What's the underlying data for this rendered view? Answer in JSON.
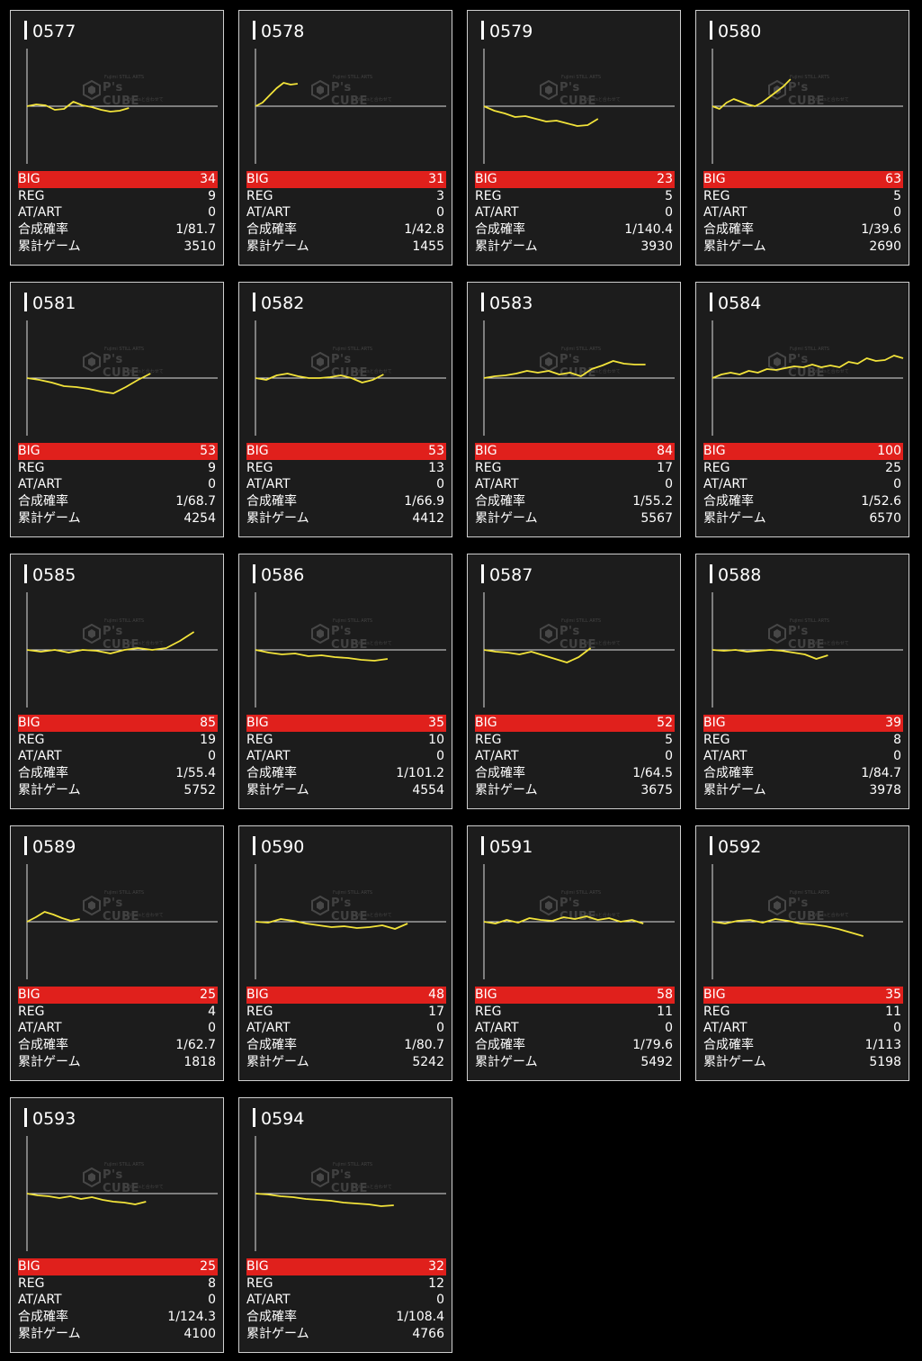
{
  "labels": {
    "big": "BIG",
    "reg": "REG",
    "atart": "AT/ART",
    "prob": "合成確率",
    "games": "累計ゲーム"
  },
  "watermark": {
    "brand": "P's CUBE",
    "line1": "Fujimi STILL ARTS",
    "line2": "slotartsと合わせて"
  },
  "colors": {
    "big_bar": "#e0201c",
    "line": "#f2e33a",
    "card_bg": "#1c1c1c"
  },
  "machines": [
    {
      "id": "0577",
      "big": "34",
      "reg": "9",
      "atart": "0",
      "prob": "1/81.7",
      "games": "3510",
      "series": [
        0,
        2,
        1,
        -4,
        -3,
        5,
        1,
        -1,
        -4,
        -6,
        -5,
        -2
      ]
    },
    {
      "id": "0578",
      "big": "31",
      "reg": "3",
      "atart": "0",
      "prob": "1/42.8",
      "games": "1455",
      "series": [
        0,
        4,
        12,
        20,
        26,
        24,
        25
      ]
    },
    {
      "id": "0579",
      "big": "23",
      "reg": "5",
      "atart": "0",
      "prob": "1/140.4",
      "games": "3930",
      "series": [
        0,
        -5,
        -8,
        -12,
        -11,
        -14,
        -17,
        -16,
        -19,
        -22,
        -21,
        -14
      ]
    },
    {
      "id": "0580",
      "big": "63",
      "reg": "5",
      "atart": "0",
      "prob": "1/39.6",
      "games": "2690",
      "series": [
        0,
        -3,
        4,
        8,
        5,
        2,
        0,
        4,
        10,
        16,
        22,
        30
      ]
    },
    {
      "id": "0581",
      "big": "53",
      "reg": "9",
      "atart": "0",
      "prob": "1/68.7",
      "games": "4254",
      "series": [
        0,
        -2,
        -5,
        -9,
        -10,
        -12,
        -15,
        -17,
        -10,
        -2,
        5
      ]
    },
    {
      "id": "0582",
      "big": "53",
      "reg": "13",
      "atart": "0",
      "prob": "1/66.9",
      "games": "4412",
      "series": [
        0,
        -2,
        3,
        5,
        2,
        0,
        0,
        1,
        3,
        0,
        -5,
        -2,
        4
      ]
    },
    {
      "id": "0583",
      "big": "84",
      "reg": "17",
      "atart": "0",
      "prob": "1/55.2",
      "games": "5567",
      "series": [
        0,
        2,
        3,
        5,
        8,
        6,
        8,
        4,
        6,
        2,
        10,
        14,
        19,
        16,
        15,
        15
      ]
    },
    {
      "id": "0584",
      "big": "100",
      "reg": "25",
      "atart": "0",
      "prob": "1/52.6",
      "games": "6570",
      "series": [
        0,
        4,
        6,
        4,
        8,
        6,
        10,
        9,
        11,
        13,
        12,
        15,
        12,
        14,
        12,
        18,
        16,
        22,
        19,
        20,
        25,
        22
      ]
    },
    {
      "id": "0585",
      "big": "85",
      "reg": "19",
      "atart": "0",
      "prob": "1/55.4",
      "games": "5752",
      "series": [
        0,
        -2,
        0,
        -3,
        0,
        -1,
        -4,
        0,
        2,
        0,
        2,
        10,
        20
      ]
    },
    {
      "id": "0586",
      "big": "35",
      "reg": "10",
      "atart": "0",
      "prob": "1/101.2",
      "games": "4554",
      "series": [
        0,
        -3,
        -5,
        -4,
        -7,
        -6,
        -8,
        -9,
        -11,
        -12,
        -10
      ]
    },
    {
      "id": "0587",
      "big": "52",
      "reg": "5",
      "atart": "0",
      "prob": "1/64.5",
      "games": "3675",
      "series": [
        0,
        -2,
        -3,
        -5,
        -2,
        -6,
        -10,
        -14,
        -8,
        2
      ]
    },
    {
      "id": "0588",
      "big": "39",
      "reg": "8",
      "atart": "0",
      "prob": "1/84.7",
      "games": "3978",
      "series": [
        0,
        -1,
        0,
        -2,
        -1,
        0,
        -1,
        -3,
        -5,
        -10,
        -6
      ]
    },
    {
      "id": "0589",
      "big": "25",
      "reg": "4",
      "atart": "0",
      "prob": "1/62.7",
      "games": "1818",
      "series": [
        0,
        5,
        11,
        8,
        4,
        1,
        3
      ]
    },
    {
      "id": "0590",
      "big": "48",
      "reg": "17",
      "atart": "0",
      "prob": "1/80.7",
      "games": "5242",
      "series": [
        0,
        -1,
        3,
        1,
        -2,
        -4,
        -6,
        -5,
        -7,
        -6,
        -4,
        -8,
        -2
      ]
    },
    {
      "id": "0591",
      "big": "58",
      "reg": "11",
      "atart": "0",
      "prob": "1/79.6",
      "games": "5492",
      "series": [
        0,
        -2,
        2,
        -1,
        4,
        2,
        1,
        5,
        3,
        6,
        2,
        4,
        0,
        2,
        -2
      ]
    },
    {
      "id": "0592",
      "big": "35",
      "reg": "11",
      "atart": "0",
      "prob": "1/113",
      "games": "5198",
      "series": [
        0,
        -2,
        1,
        2,
        -1,
        3,
        1,
        -2,
        -3,
        -5,
        -8,
        -12,
        -16
      ]
    },
    {
      "id": "0593",
      "big": "25",
      "reg": "8",
      "atart": "0",
      "prob": "1/124.3",
      "games": "4100",
      "series": [
        0,
        -2,
        -3,
        -5,
        -3,
        -6,
        -4,
        -7,
        -9,
        -10,
        -12,
        -9
      ]
    },
    {
      "id": "0594",
      "big": "32",
      "reg": "12",
      "atart": "0",
      "prob": "1/108.4",
      "games": "4766",
      "series": [
        0,
        -1,
        -3,
        -4,
        -6,
        -7,
        -8,
        -10,
        -11,
        -12,
        -14,
        -13
      ]
    }
  ]
}
